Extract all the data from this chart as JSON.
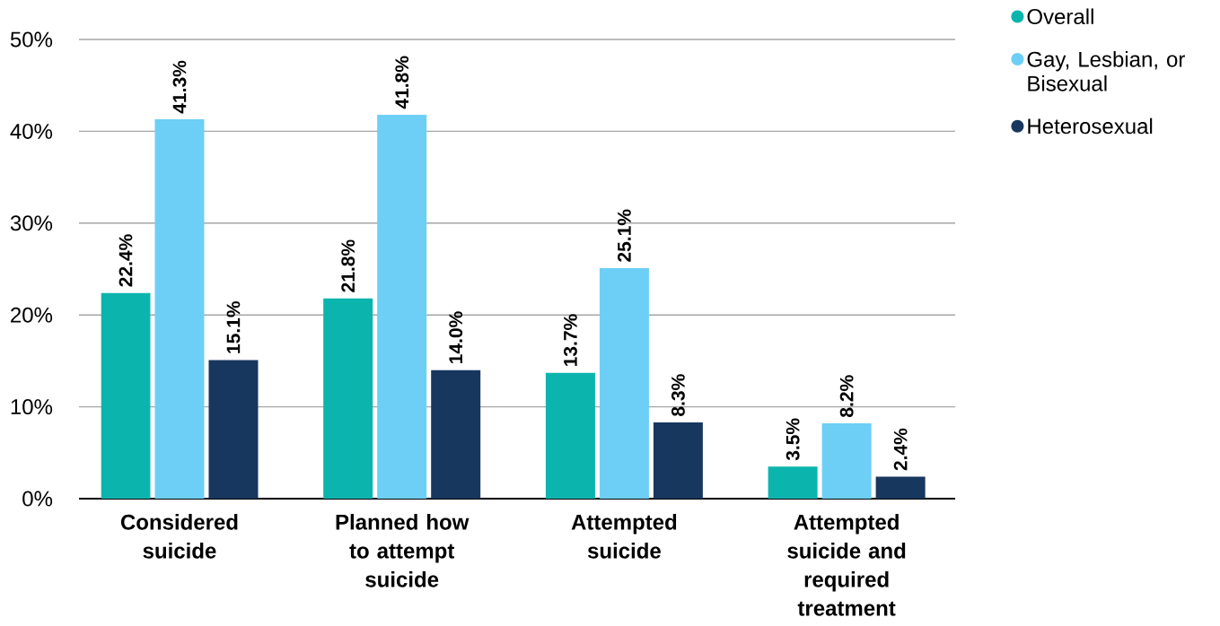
{
  "chart_data": {
    "type": "bar",
    "categories": [
      "Considered suicide",
      "Planned how to attempt suicide",
      "Attempted suicide",
      "Attempted suicide and required treatment"
    ],
    "series": [
      {
        "name": "Overall",
        "color": "#0bb5ad",
        "values": [
          22.4,
          21.8,
          13.7,
          3.5
        ],
        "value_labels": [
          "22.4%",
          "21.8%",
          "13.7%",
          "3.5%"
        ]
      },
      {
        "name": "Gay, Lesbian, or Bisexual",
        "color": "#6dcff6",
        "values": [
          41.3,
          41.8,
          25.1,
          8.2
        ],
        "value_labels": [
          "41.3%",
          "41.8%",
          "25.1%",
          "8.2%"
        ]
      },
      {
        "name": "Heterosexual",
        "color": "#17375e",
        "values": [
          15.1,
          14.0,
          8.3,
          2.4
        ],
        "value_labels": [
          "15.1%",
          "14.0%",
          "8.3%",
          "2.4%"
        ]
      }
    ],
    "ylim": [
      0,
      50
    ],
    "yticks": [
      {
        "value": 0,
        "label": "0%"
      },
      {
        "value": 10,
        "label": "10%"
      },
      {
        "value": 20,
        "label": "20%"
      },
      {
        "value": 30,
        "label": "30%"
      },
      {
        "value": 40,
        "label": "40%"
      },
      {
        "value": 50,
        "label": "50%"
      }
    ],
    "grid": "y",
    "legend": "top right"
  }
}
